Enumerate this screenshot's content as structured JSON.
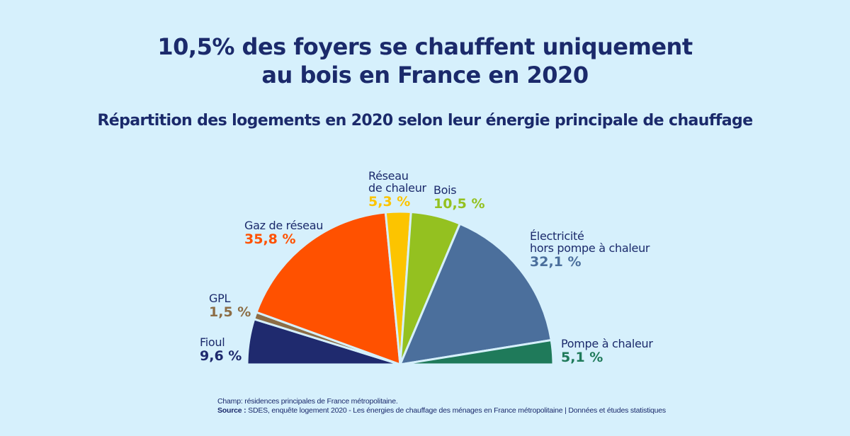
{
  "header": {
    "title_line1": "10,5% des foyers se chauffent uniquement",
    "title_line2": "au bois en France en 2020",
    "subtitle": "Répartition des logements en 2020 selon leur énergie principale de chauffage"
  },
  "chart_data": {
    "type": "pie",
    "variant": "half-pie",
    "title": "10,5% des foyers se chauffent uniquement au bois en France en 2020",
    "subtitle": "Répartition des logements en 2020 selon leur énergie principale de chauffage",
    "unit": "%",
    "order": "left-to-right",
    "slices": [
      {
        "name": "Fioul",
        "name_lines": [
          "Fioul"
        ],
        "value": 9.6,
        "label": "9,6 %",
        "color": "#1f2a6e"
      },
      {
        "name": "GPL",
        "name_lines": [
          "GPL"
        ],
        "value": 1.5,
        "label": "1,5 %",
        "color": "#8c6d45"
      },
      {
        "name": "Gaz de réseau",
        "name_lines": [
          "Gaz de réseau"
        ],
        "value": 35.8,
        "label": "35,8 %",
        "color": "#ff5100"
      },
      {
        "name": "Réseau de chaleur",
        "name_lines": [
          "Réseau",
          "de chaleur"
        ],
        "value": 5.3,
        "label": "5,3 %",
        "color": "#fcc400"
      },
      {
        "name": "Bois",
        "name_lines": [
          "Bois"
        ],
        "value": 10.5,
        "label": "10,5 %",
        "color": "#94c120"
      },
      {
        "name": "Électricité hors pompe à chaleur",
        "name_lines": [
          "Électricité",
          "hors pompe à chaleur"
        ],
        "value": 32.1,
        "label": "32,1 %",
        "color": "#4b6f9c"
      },
      {
        "name": "Pompe à chaleur",
        "name_lines": [
          "Pompe à chaleur"
        ],
        "value": 5.1,
        "label": "5,1 %",
        "color": "#1f7a5a"
      }
    ]
  },
  "footer": {
    "scope": "Champ: résidences principales de France métropolitaine.",
    "source_label": "Source :",
    "source_text": " SDES, enquête logement 2020 -  Les énergies de chauffage des ménages en France métropolitaine | Données et études statistiques"
  }
}
